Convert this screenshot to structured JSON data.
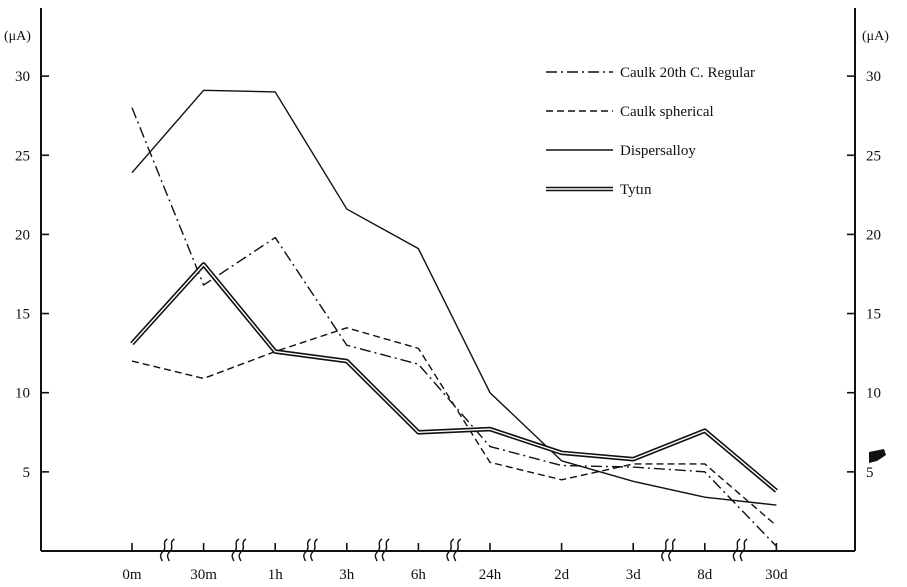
{
  "chart_data": {
    "type": "line",
    "title": "",
    "xlabel": "",
    "ylabel": "(μA)",
    "ylabel_right": "(μA)",
    "categories": [
      "0m",
      "30m",
      "1h",
      "3h",
      "6h",
      "24h",
      "2d",
      "3d",
      "8d",
      "30d"
    ],
    "yticks": [
      5,
      10,
      15,
      20,
      25,
      30
    ],
    "ylim": [
      0,
      33
    ],
    "grid": false,
    "legend_position": "top-right",
    "axis_breaks_after": [
      "0m",
      "30m",
      "1h",
      "3h",
      "6h",
      "3d",
      "8d"
    ],
    "series": [
      {
        "name": "Caulk 20th C. Regular",
        "style": "dash-dot",
        "values": [
          28.0,
          16.8,
          19.8,
          13.0,
          11.8,
          6.6,
          5.4,
          5.3,
          5.0,
          0.3
        ]
      },
      {
        "name": "Caulk spherical",
        "style": "dashed",
        "values": [
          12.0,
          10.9,
          12.6,
          14.1,
          12.8,
          5.6,
          4.5,
          5.5,
          5.5,
          1.6
        ]
      },
      {
        "name": "Dispersalloy",
        "style": "solid",
        "values": [
          23.9,
          29.1,
          29.0,
          21.6,
          19.1,
          10.0,
          5.7,
          4.4,
          3.4,
          2.9
        ]
      },
      {
        "name": "Tytın",
        "style": "double",
        "values": [
          13.1,
          18.1,
          12.6,
          12.0,
          7.5,
          7.7,
          6.2,
          5.8,
          7.6,
          3.8
        ]
      }
    ],
    "colors": {
      "line": "#111111",
      "background": "#ffffff"
    }
  }
}
